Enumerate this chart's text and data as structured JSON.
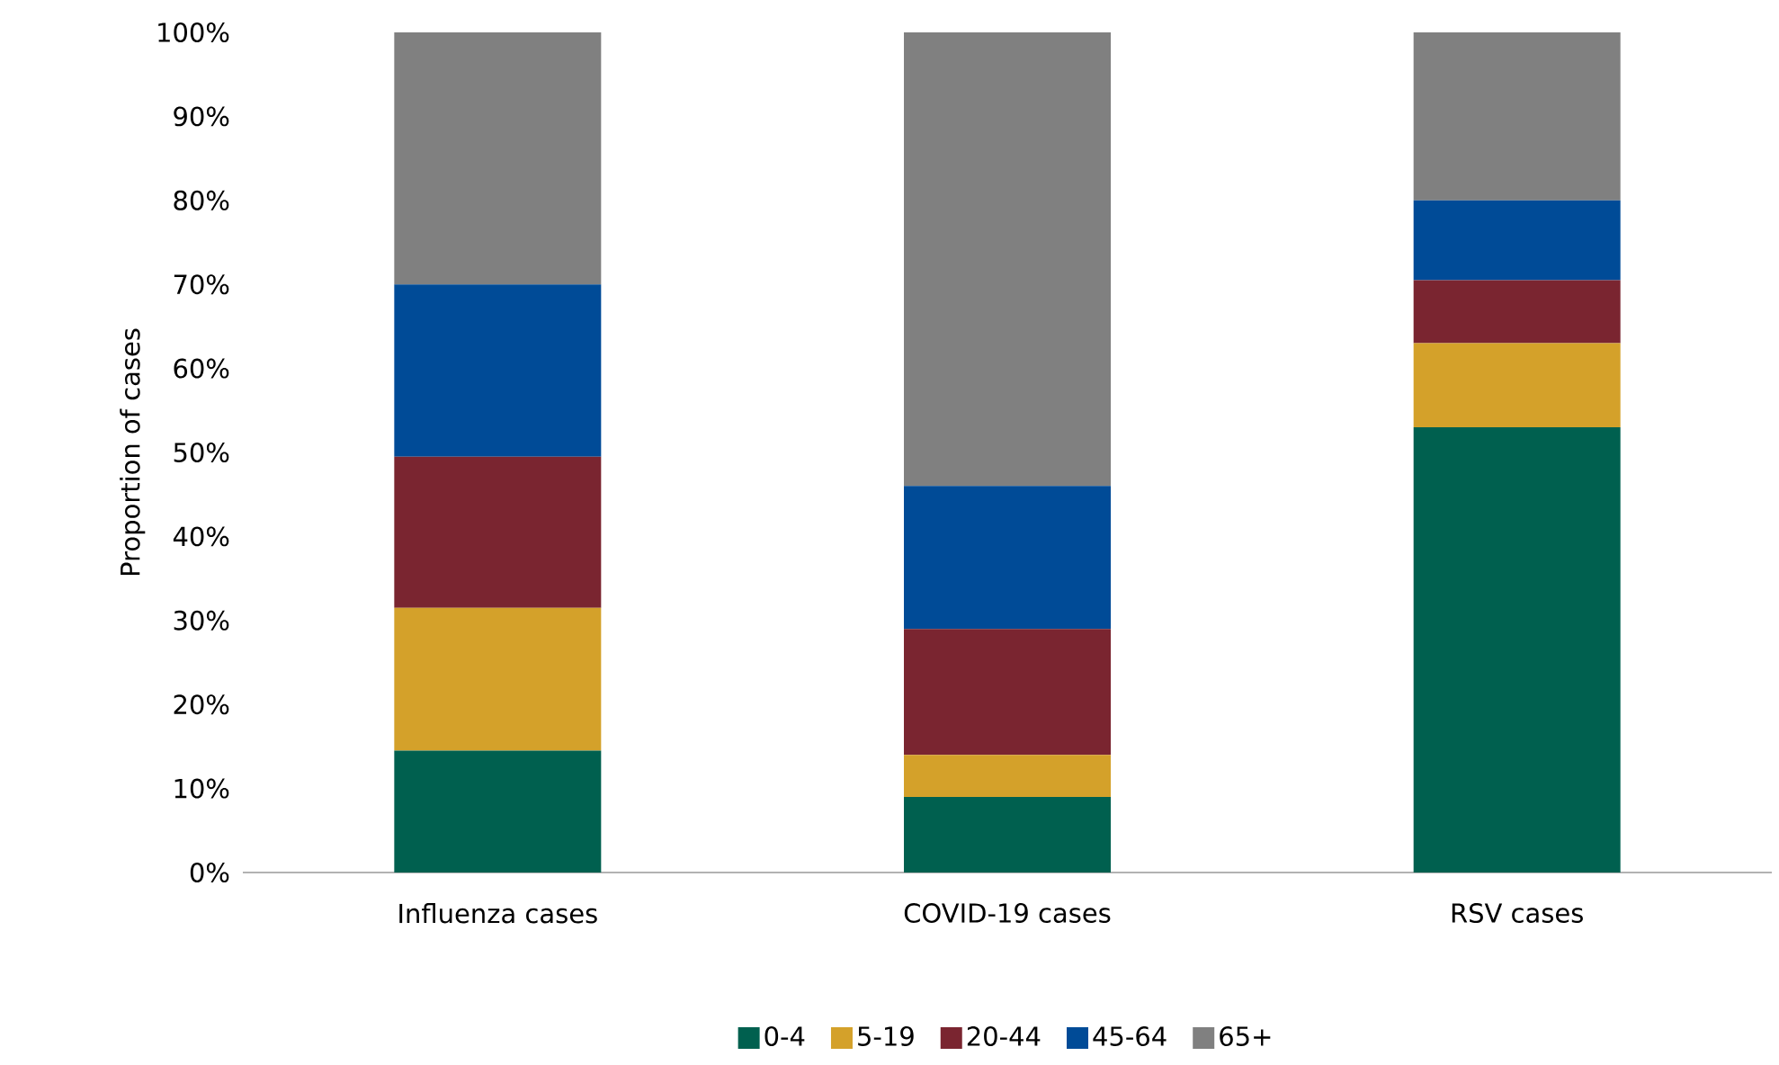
{
  "chart_data": {
    "type": "bar",
    "stacked": true,
    "ylabel": "Proportion of cases",
    "categories": [
      "Influenza cases",
      "COVID-19 cases",
      "RSV cases"
    ],
    "series": [
      {
        "name": "0-4",
        "color": "#00604f",
        "values": [
          14.5,
          9,
          53
        ]
      },
      {
        "name": "5-19",
        "color": "#d4a12a",
        "values": [
          17,
          5,
          10
        ]
      },
      {
        "name": "20-44",
        "color": "#7a2530",
        "values": [
          18,
          15,
          7.5
        ]
      },
      {
        "name": "45-64",
        "color": "#004b97",
        "values": [
          20.5,
          17,
          9.5
        ]
      },
      {
        "name": "65+",
        "color": "#808080",
        "values": [
          30,
          54,
          20
        ]
      }
    ],
    "ylim": [
      0,
      100
    ],
    "yticks": [
      {
        "value": 0,
        "label": "0%"
      },
      {
        "value": 10,
        "label": "10%"
      },
      {
        "value": 20,
        "label": "20%"
      },
      {
        "value": 30,
        "label": "30%"
      },
      {
        "value": 40,
        "label": "40%"
      },
      {
        "value": 50,
        "label": "50%"
      },
      {
        "value": 60,
        "label": "60%"
      },
      {
        "value": 70,
        "label": "70%"
      },
      {
        "value": 80,
        "label": "80%"
      },
      {
        "value": 90,
        "label": "90%"
      },
      {
        "value": 100,
        "label": "100%"
      }
    ],
    "legend": "bottom"
  }
}
